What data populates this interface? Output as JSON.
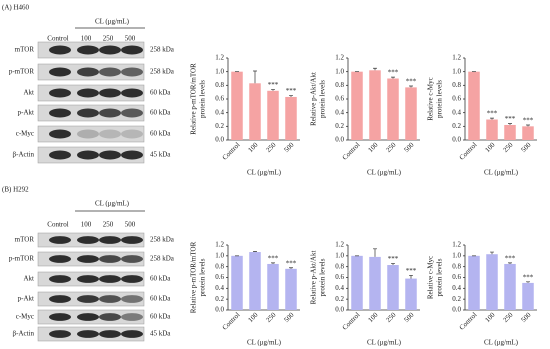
{
  "blots": [
    {
      "panel_label": "(A)  H460",
      "treatment": "CL (μg/mL)",
      "lanes": [
        "Control",
        "100",
        "250",
        "500"
      ],
      "proteins": [
        "mTOR",
        "p-mTOR",
        "Akt",
        "p-Akt",
        "c-Myc",
        "β-Actin"
      ],
      "weights": [
        "258 kDa",
        "258 kDa",
        "60 kDa",
        "60 kDa",
        "60 kDa",
        "45 kDa"
      ]
    },
    {
      "panel_label": "(B)  H292",
      "treatment": "CL (μg/mL)",
      "lanes": [
        "Control",
        "100",
        "250",
        "500"
      ],
      "proteins": [
        "mTOR",
        "p-mTOR",
        "Akt",
        "p-Akt",
        "c-Myc",
        "β-Actin"
      ],
      "weights": [
        "258 kDa",
        "258 kDa",
        "60 kDa",
        "60 kDa",
        "60 kDa",
        "45 kDa"
      ]
    }
  ],
  "chart_data": [
    {
      "type": "bar",
      "ylabel": [
        "Relative p-mTOR/mTOR",
        "protein levels"
      ],
      "xlabel": "CL (μg/mL)",
      "categories": [
        "Control",
        "100",
        "250",
        "500"
      ],
      "values": [
        1.0,
        0.83,
        0.72,
        0.63
      ],
      "errors": [
        0,
        0.18,
        0.02,
        0.02
      ],
      "annotations": [
        null,
        null,
        "***",
        "***"
      ],
      "color": "#f5a3a3",
      "ylim": [
        0,
        1.2
      ],
      "yticks": [
        {
          "value": 0,
          "label": "0.0"
        },
        0.2,
        0.4,
        0.6,
        0.8,
        {
          "value": 1,
          "label": "1.0"
        },
        1.2
      ]
    },
    {
      "type": "bar",
      "ylabel": [
        "Relative p-Akt/Akt",
        "protein levels"
      ],
      "xlabel": "CL (μg/mL)",
      "categories": [
        "Control",
        "100",
        "250",
        "500"
      ],
      "values": [
        1.0,
        1.02,
        0.9,
        0.77
      ],
      "errors": [
        0,
        0.03,
        0.02,
        0.02
      ],
      "annotations": [
        null,
        null,
        "***",
        "***"
      ],
      "color": "#f5a3a3",
      "ylim": [
        0,
        1.2
      ],
      "yticks": [
        {
          "value": 0,
          "label": "0.0"
        },
        0.2,
        0.4,
        0.6,
        0.8,
        {
          "value": 1,
          "label": "1.0"
        },
        1.2
      ]
    },
    {
      "type": "bar",
      "ylabel": [
        "Relative c-Myc",
        "protein levels"
      ],
      "xlabel": "CL (μg/mL)",
      "categories": [
        "Control",
        "100",
        "250",
        "500"
      ],
      "values": [
        1.0,
        0.3,
        0.22,
        0.2
      ],
      "errors": [
        0,
        0.02,
        0.02,
        0.02
      ],
      "annotations": [
        null,
        "***",
        "***",
        "***"
      ],
      "color": "#f5a3a3",
      "ylim": [
        0,
        1.2
      ],
      "yticks": [
        {
          "value": 0,
          "label": "0.0"
        },
        0.2,
        0.4,
        0.6,
        0.8,
        {
          "value": 1,
          "label": "1.0"
        },
        1.2
      ]
    },
    {
      "type": "bar",
      "ylabel": [
        "Relative p-mTOR/mTOR",
        "protein levels"
      ],
      "xlabel": "CL (μg/mL)",
      "categories": [
        "Control",
        "100",
        "250",
        "500"
      ],
      "values": [
        1.0,
        1.07,
        0.85,
        0.76
      ],
      "errors": [
        0,
        0.01,
        0.02,
        0.02
      ],
      "annotations": [
        null,
        null,
        "***",
        "***"
      ],
      "color": "#b4b4f0",
      "ylim": [
        0,
        1.2
      ],
      "yticks": [
        {
          "value": 0,
          "label": "0.0"
        },
        0.2,
        0.4,
        0.6,
        0.8,
        {
          "value": 1,
          "label": "1.0"
        },
        1.2
      ]
    },
    {
      "type": "bar",
      "ylabel": [
        "Relative p-Akt/Akt",
        "protein levels"
      ],
      "xlabel": "CL (μg/mL)",
      "categories": [
        "Control",
        "100",
        "250",
        "500"
      ],
      "values": [
        1.0,
        0.98,
        0.83,
        0.58
      ],
      "errors": [
        0,
        0.15,
        0.03,
        0.06
      ],
      "annotations": [
        null,
        null,
        "***",
        "***"
      ],
      "color": "#b4b4f0",
      "ylim": [
        0,
        1.2
      ],
      "yticks": [
        {
          "value": 0,
          "label": "0.0"
        },
        0.2,
        0.4,
        0.6,
        0.8,
        {
          "value": 1,
          "label": "1.0"
        },
        1.2
      ]
    },
    {
      "type": "bar",
      "ylabel": [
        "Relative c-Myc",
        "protein levels"
      ],
      "xlabel": "CL (μg/mL)",
      "categories": [
        "Control",
        "100",
        "250",
        "500"
      ],
      "values": [
        1.0,
        1.03,
        0.85,
        0.5
      ],
      "errors": [
        0,
        0.04,
        0.02,
        0.02
      ],
      "annotations": [
        null,
        null,
        "***",
        "***"
      ],
      "color": "#b4b4f0",
      "ylim": [
        0,
        1.2
      ],
      "yticks": [
        {
          "value": 0,
          "label": "0.0"
        },
        0.2,
        0.4,
        0.6,
        0.8,
        {
          "value": 1,
          "label": "1.0"
        },
        1.2
      ]
    }
  ]
}
